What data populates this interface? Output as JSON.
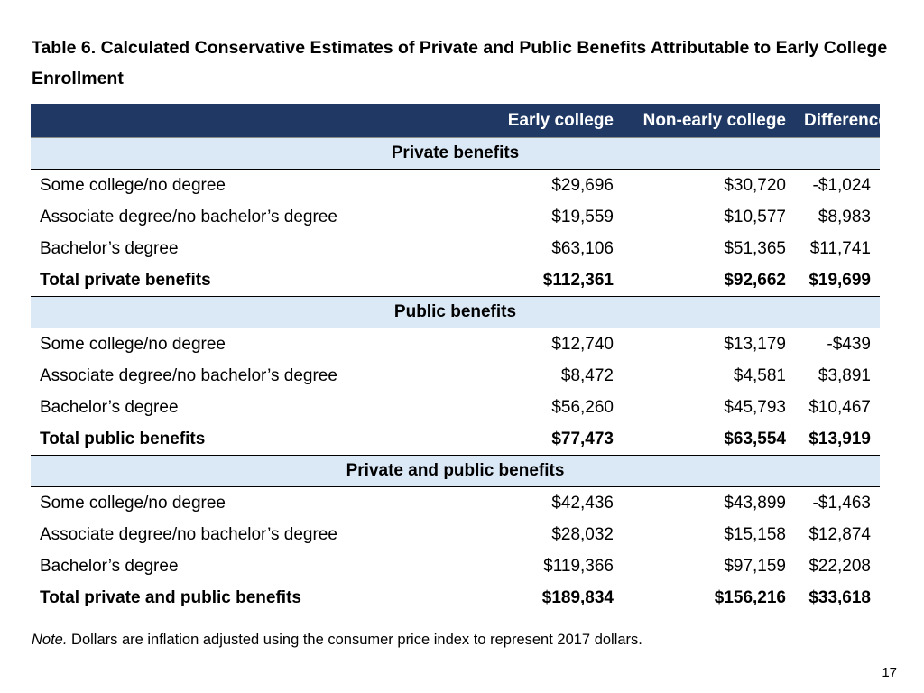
{
  "title": "Table 6. Calculated Conservative Estimates of Private and Public Benefits Attributable to Early College Enrollment",
  "table": {
    "columns": [
      "",
      "Early college",
      "Non-early college",
      "Difference"
    ],
    "sections": [
      {
        "heading": "Private benefits",
        "rows": [
          {
            "label": "Some college/no degree",
            "early": "$29,696",
            "non_early": "$30,720",
            "difference": "-$1,024"
          },
          {
            "label": "Associate degree/no bachelor’s degree",
            "early": "$19,559",
            "non_early": "$10,577",
            "difference": "$8,983"
          },
          {
            "label": "Bachelor’s degree",
            "early": "$63,106",
            "non_early": "$51,365",
            "difference": "$11,741"
          }
        ],
        "total": {
          "label": "Total private benefits",
          "early": "$112,361",
          "non_early": "$92,662",
          "difference": "$19,699"
        }
      },
      {
        "heading": "Public benefits",
        "rows": [
          {
            "label": "Some college/no degree",
            "early": "$12,740",
            "non_early": "$13,179",
            "difference": "-$439"
          },
          {
            "label": "Associate degree/no bachelor’s degree",
            "early": "$8,472",
            "non_early": "$4,581",
            "difference": "$3,891"
          },
          {
            "label": "Bachelor’s degree",
            "early": "$56,260",
            "non_early": "$45,793",
            "difference": "$10,467"
          }
        ],
        "total": {
          "label": "Total public benefits",
          "early": "$77,473",
          "non_early": "$63,554",
          "difference": "$13,919"
        }
      },
      {
        "heading": "Private and public benefits",
        "rows": [
          {
            "label": "Some college/no degree",
            "early": "$42,436",
            "non_early": "$43,899",
            "difference": "-$1,463"
          },
          {
            "label": "Associate degree/no bachelor’s degree",
            "early": "$28,032",
            "non_early": "$15,158",
            "difference": "$12,874"
          },
          {
            "label": "Bachelor’s degree",
            "early": "$119,366",
            "non_early": "$97,159",
            "difference": "$22,208"
          }
        ],
        "total": {
          "label": "Total private and public benefits",
          "early": "$189,834",
          "non_early": "$156,216",
          "difference": "$33,618"
        }
      }
    ]
  },
  "note": {
    "label": "Note.",
    "text": " Dollars are inflation adjusted using the consumer price index to represent 2017 dollars."
  },
  "page_number": "17",
  "colors": {
    "header_bg": "#1f3864",
    "section_bg": "#dbe9f7"
  }
}
